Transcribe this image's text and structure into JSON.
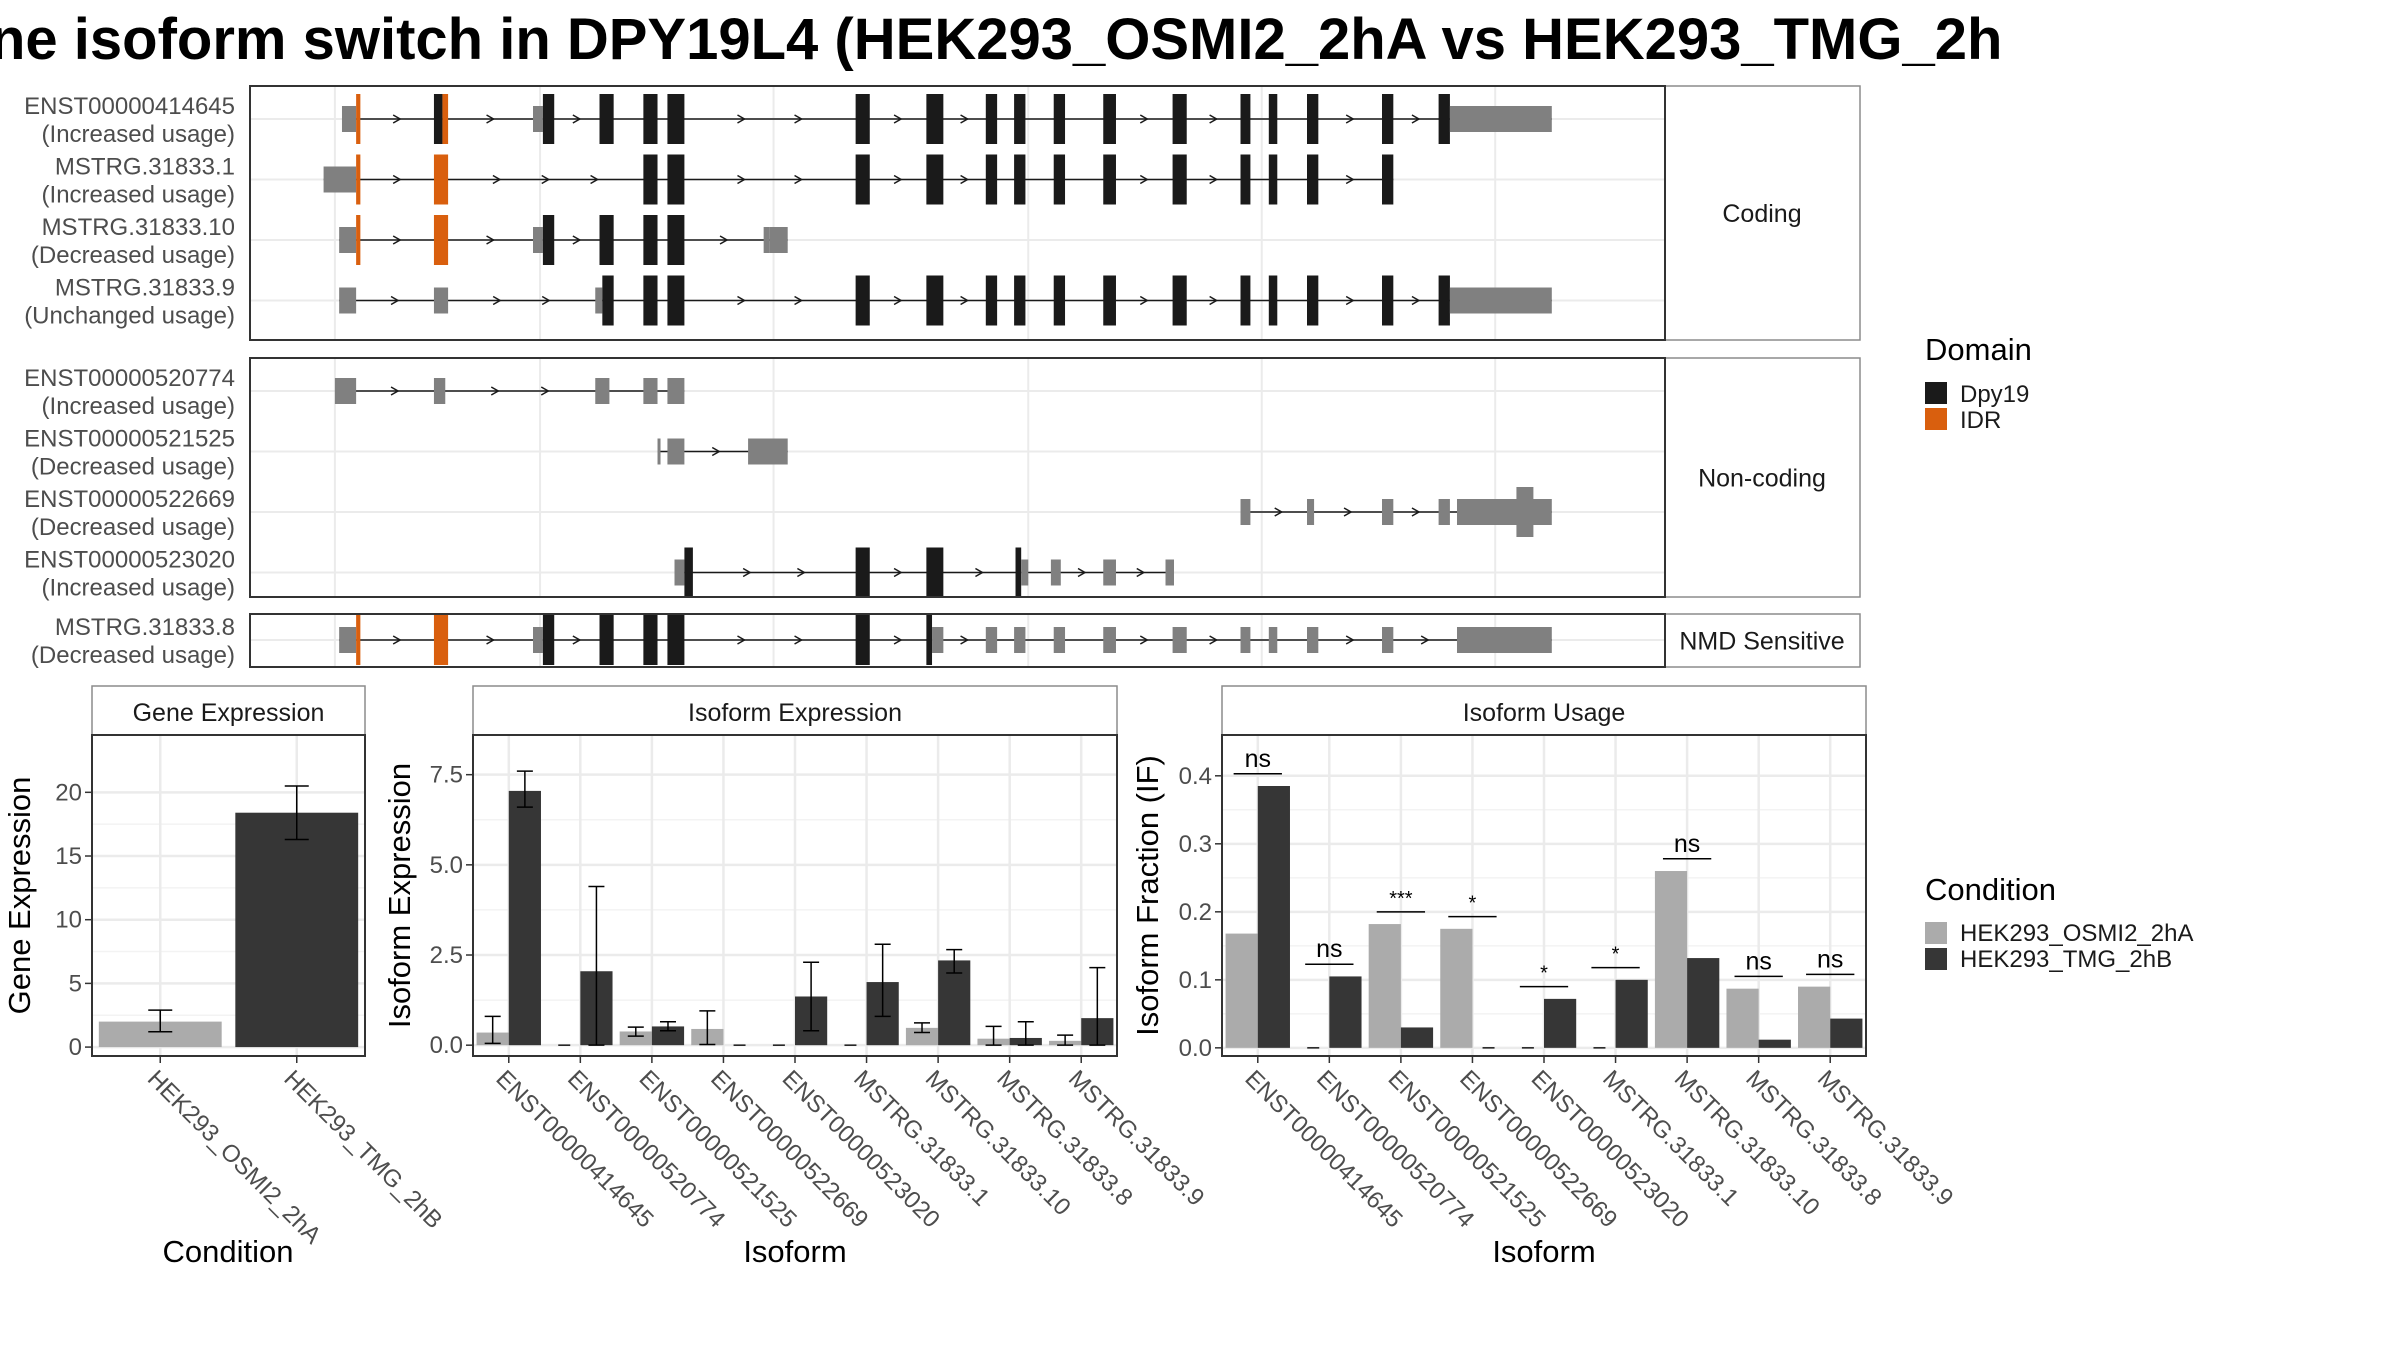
{
  "title": "ne isoform switch in DPY19L4 (HEK293_OSMI2_2hA vs HEK293_TMG_2h",
  "colors": {
    "cond_a": "#ababab",
    "cond_b": "#363636",
    "dpy19": "#1a1a1a",
    "idr": "#d95f0e",
    "noncoding_exon": "#808080",
    "panel_border": "#333333",
    "strip_fill": "#ffffff",
    "grid": "#ebebeb"
  },
  "structure": {
    "groups": [
      {
        "label": "Coding",
        "transcripts": [
          {
            "id": "ENST00000414645",
            "usage": "(Increased usage)",
            "exons": [
              [
                0.065,
                0.075,
                "utr"
              ],
              [
                0.075,
                0.078,
                "idr"
              ],
              [
                0.13,
                0.136,
                "cds"
              ],
              [
                0.136,
                0.14,
                "idr"
              ],
              [
                0.2,
                0.207,
                "utr"
              ],
              [
                0.207,
                0.215,
                "cds"
              ],
              [
                0.247,
                0.257,
                "cds"
              ],
              [
                0.278,
                0.288,
                "cds"
              ],
              [
                0.295,
                0.307,
                "cds"
              ],
              [
                0.428,
                0.438,
                "cds"
              ],
              [
                0.478,
                0.49,
                "cds"
              ],
              [
                0.52,
                0.528,
                "cds"
              ],
              [
                0.54,
                0.548,
                "cds"
              ],
              [
                0.568,
                0.576,
                "cds"
              ],
              [
                0.603,
                0.612,
                "cds"
              ],
              [
                0.652,
                0.662,
                "cds"
              ],
              [
                0.7,
                0.707,
                "cds"
              ],
              [
                0.72,
                0.726,
                "cds"
              ],
              [
                0.747,
                0.755,
                "cds"
              ],
              [
                0.8,
                0.808,
                "cds"
              ],
              [
                0.84,
                0.848,
                "cds"
              ],
              [
                0.848,
                0.853,
                "utr"
              ],
              [
                0.853,
                0.92,
                "utrbig"
              ]
            ]
          },
          {
            "id": "MSTRG.31833.1",
            "usage": "(Increased usage)",
            "exons": [
              [
                0.052,
                0.075,
                "utr"
              ],
              [
                0.075,
                0.078,
                "idr"
              ],
              [
                0.13,
                0.14,
                "idr"
              ],
              [
                0.278,
                0.288,
                "cds"
              ],
              [
                0.295,
                0.307,
                "cds"
              ],
              [
                0.428,
                0.438,
                "cds"
              ],
              [
                0.478,
                0.49,
                "cds"
              ],
              [
                0.52,
                0.528,
                "cds"
              ],
              [
                0.54,
                0.548,
                "cds"
              ],
              [
                0.568,
                0.576,
                "cds"
              ],
              [
                0.603,
                0.612,
                "cds"
              ],
              [
                0.652,
                0.662,
                "cds"
              ],
              [
                0.7,
                0.707,
                "cds"
              ],
              [
                0.72,
                0.726,
                "cds"
              ],
              [
                0.747,
                0.755,
                "cds"
              ],
              [
                0.8,
                0.808,
                "cds"
              ]
            ]
          },
          {
            "id": "MSTRG.31833.10",
            "usage": "(Decreased usage)",
            "exons": [
              [
                0.063,
                0.075,
                "utr"
              ],
              [
                0.075,
                0.078,
                "idr"
              ],
              [
                0.13,
                0.14,
                "idr"
              ],
              [
                0.2,
                0.207,
                "utr"
              ],
              [
                0.207,
                0.215,
                "cds"
              ],
              [
                0.247,
                0.257,
                "cds"
              ],
              [
                0.278,
                0.288,
                "cds"
              ],
              [
                0.295,
                0.307,
                "cds"
              ],
              [
                0.363,
                0.367,
                "utr"
              ],
              [
                0.367,
                0.38,
                "utrbig"
              ]
            ]
          },
          {
            "id": "MSTRG.31833.9",
            "usage": "(Unchanged usage)",
            "exons": [
              [
                0.063,
                0.075,
                "utr"
              ],
              [
                0.13,
                0.14,
                "utr"
              ],
              [
                0.244,
                0.249,
                "utr"
              ],
              [
                0.249,
                0.257,
                "cds"
              ],
              [
                0.278,
                0.288,
                "cds"
              ],
              [
                0.295,
                0.307,
                "cds"
              ],
              [
                0.428,
                0.438,
                "cds"
              ],
              [
                0.478,
                0.49,
                "cds"
              ],
              [
                0.52,
                0.528,
                "cds"
              ],
              [
                0.54,
                0.548,
                "cds"
              ],
              [
                0.568,
                0.576,
                "cds"
              ],
              [
                0.603,
                0.612,
                "cds"
              ],
              [
                0.652,
                0.662,
                "cds"
              ],
              [
                0.7,
                0.707,
                "cds"
              ],
              [
                0.72,
                0.726,
                "cds"
              ],
              [
                0.747,
                0.755,
                "cds"
              ],
              [
                0.8,
                0.808,
                "cds"
              ],
              [
                0.84,
                0.848,
                "cds"
              ],
              [
                0.848,
                0.853,
                "utr"
              ],
              [
                0.853,
                0.92,
                "utrbig"
              ]
            ]
          }
        ]
      },
      {
        "label": "Non-coding",
        "transcripts": [
          {
            "id": "ENST00000520774",
            "usage": "(Increased usage)",
            "exons": [
              [
                0.06,
                0.075,
                "nc"
              ],
              [
                0.13,
                0.138,
                "nc"
              ],
              [
                0.244,
                0.254,
                "nc"
              ],
              [
                0.278,
                0.288,
                "nc"
              ],
              [
                0.295,
                0.307,
                "nc"
              ]
            ]
          },
          {
            "id": "ENST00000521525",
            "usage": "(Decreased usage)",
            "exons": [
              [
                0.288,
                0.29,
                "nc"
              ],
              [
                0.295,
                0.307,
                "nc"
              ],
              [
                0.352,
                0.38,
                "ncbig"
              ]
            ]
          },
          {
            "id": "ENST00000522669",
            "usage": "(Decreased usage)",
            "exons": [
              [
                0.7,
                0.707,
                "nc"
              ],
              [
                0.747,
                0.752,
                "nc"
              ],
              [
                0.8,
                0.808,
                "nc"
              ],
              [
                0.84,
                0.848,
                "nc"
              ],
              [
                0.853,
                0.92,
                "ncbig"
              ],
              [
                0.895,
                0.907,
                "nctall"
              ]
            ]
          },
          {
            "id": "ENST00000523020",
            "usage": "(Increased usage)",
            "exons": [
              [
                0.3,
                0.307,
                "nc"
              ],
              [
                0.307,
                0.313,
                "cds"
              ],
              [
                0.428,
                0.438,
                "cds"
              ],
              [
                0.478,
                0.49,
                "cds"
              ],
              [
                0.541,
                0.545,
                "cds"
              ],
              [
                0.545,
                0.55,
                "nc"
              ],
              [
                0.566,
                0.573,
                "nc"
              ],
              [
                0.603,
                0.612,
                "nc"
              ],
              [
                0.647,
                0.653,
                "nc"
              ]
            ]
          }
        ]
      },
      {
        "label": "NMD Sensitive",
        "transcripts": [
          {
            "id": "MSTRG.31833.8",
            "usage": "(Decreased usage)",
            "exons": [
              [
                0.063,
                0.075,
                "utr"
              ],
              [
                0.075,
                0.078,
                "idr"
              ],
              [
                0.13,
                0.14,
                "idr"
              ],
              [
                0.2,
                0.207,
                "utr"
              ],
              [
                0.207,
                0.215,
                "cds"
              ],
              [
                0.247,
                0.257,
                "cds"
              ],
              [
                0.278,
                0.288,
                "cds"
              ],
              [
                0.295,
                0.307,
                "cds"
              ],
              [
                0.428,
                0.438,
                "cds"
              ],
              [
                0.478,
                0.482,
                "cds"
              ],
              [
                0.482,
                0.49,
                "nc"
              ],
              [
                0.52,
                0.528,
                "nc"
              ],
              [
                0.54,
                0.548,
                "nc"
              ],
              [
                0.568,
                0.576,
                "nc"
              ],
              [
                0.603,
                0.612,
                "nc"
              ],
              [
                0.652,
                0.662,
                "nc"
              ],
              [
                0.7,
                0.707,
                "nc"
              ],
              [
                0.72,
                0.726,
                "nc"
              ],
              [
                0.747,
                0.755,
                "nc"
              ],
              [
                0.8,
                0.808,
                "nc"
              ],
              [
                0.853,
                0.92,
                "ncbig"
              ]
            ]
          }
        ]
      }
    ]
  },
  "legends": {
    "domain": {
      "title": "Domain",
      "items": [
        {
          "label": "Dpy19",
          "color": "#1a1a1a"
        },
        {
          "label": "IDR",
          "color": "#d95f0e"
        }
      ]
    },
    "condition": {
      "title": "Condition",
      "items": [
        {
          "label": "HEK293_OSMI2_2hA",
          "color": "#ababab"
        },
        {
          "label": "HEK293_TMG_2hB",
          "color": "#363636"
        }
      ]
    }
  },
  "chart_data": [
    {
      "type": "bar",
      "strip": "Gene Expression",
      "xlabel": "Condition",
      "ylabel": "Gene Expression",
      "categories": [
        "HEK293_OSMI2_2hA",
        "HEK293_TMG_2hB"
      ],
      "values": [
        2.0,
        18.4
      ],
      "err_low": [
        1.2,
        16.3
      ],
      "err_high": [
        2.9,
        20.5
      ],
      "ylim": [
        -0.7,
        24.5
      ],
      "yticks": [
        0,
        5,
        10,
        15,
        20
      ],
      "ytick_labels": [
        "0",
        "5",
        "10",
        "15",
        "20"
      ]
    },
    {
      "type": "bar",
      "strip": "Isoform Expression",
      "xlabel": "Isoform",
      "ylabel": "Isoform Expression",
      "categories": [
        "ENST00000414645",
        "ENST00000520774",
        "ENST00000521525",
        "ENST00000522669",
        "ENST00000523020",
        "MSTRG.31833.1",
        "MSTRG.31833.10",
        "MSTRG.31833.8",
        "MSTRG.31833.9"
      ],
      "series": [
        {
          "name": "HEK293_OSMI2_2hA",
          "values": [
            0.35,
            0.0,
            0.38,
            0.45,
            0.0,
            0.0,
            0.48,
            0.18,
            0.12
          ],
          "err_low": [
            0.05,
            0.0,
            0.25,
            0.02,
            0.0,
            0.0,
            0.35,
            0.0,
            0.0
          ],
          "err_high": [
            0.8,
            0.0,
            0.5,
            0.95,
            0.0,
            0.0,
            0.62,
            0.52,
            0.28
          ]
        },
        {
          "name": "HEK293_TMG_2hB",
          "values": [
            7.05,
            2.05,
            0.52,
            0.0,
            1.35,
            1.75,
            2.35,
            0.2,
            0.75
          ],
          "err_low": [
            6.6,
            0.0,
            0.4,
            0.0,
            0.4,
            0.8,
            2.0,
            0.0,
            0.0
          ],
          "err_high": [
            7.6,
            4.4,
            0.65,
            0.0,
            2.3,
            2.8,
            2.65,
            0.65,
            2.15
          ]
        }
      ],
      "ylim": [
        -0.3,
        8.6
      ],
      "yticks": [
        0,
        2.5,
        5,
        7.5
      ],
      "ytick_labels": [
        "0.0",
        "2.5",
        "5.0",
        "7.5"
      ]
    },
    {
      "type": "bar",
      "strip": "Isoform Usage",
      "xlabel": "Isoform",
      "ylabel": "Isoform Fraction (IF)",
      "categories": [
        "ENST00000414645",
        "ENST00000520774",
        "ENST00000521525",
        "ENST00000522669",
        "ENST00000523020",
        "MSTRG.31833.1",
        "MSTRG.31833.10",
        "MSTRG.31833.8",
        "MSTRG.31833.9"
      ],
      "series": [
        {
          "name": "HEK293_OSMI2_2hA",
          "values": [
            0.168,
            0.0,
            0.182,
            0.175,
            0.0,
            0.0,
            0.26,
            0.087,
            0.09
          ]
        },
        {
          "name": "HEK293_TMG_2hB",
          "values": [
            0.385,
            0.105,
            0.03,
            0.0,
            0.072,
            0.1,
            0.132,
            0.012,
            0.043
          ]
        }
      ],
      "significance": [
        "ns",
        "ns",
        "***",
        "*",
        "*",
        "*",
        "ns",
        "ns",
        "ns"
      ],
      "ylim": [
        -0.012,
        0.46
      ],
      "yticks": [
        0,
        0.1,
        0.2,
        0.3,
        0.4
      ],
      "ytick_labels": [
        "0.0",
        "0.1",
        "0.2",
        "0.3",
        "0.4"
      ]
    }
  ]
}
